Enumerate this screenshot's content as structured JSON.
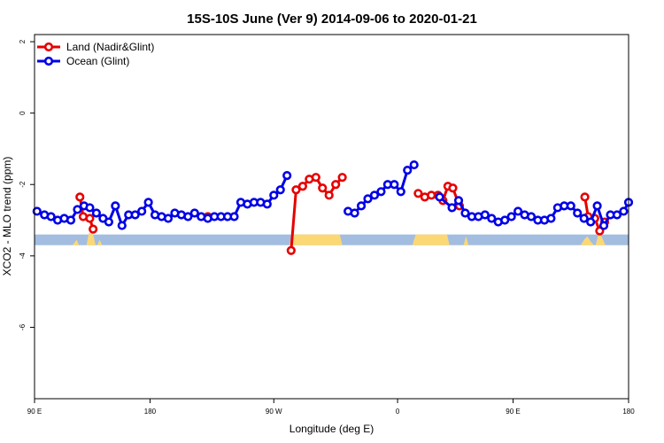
{
  "chart_data": {
    "type": "line",
    "title": "15S-10S June (Ver 9)   2014-09-06 to 2020-01-21",
    "xlabel": "Longitude (deg E)",
    "ylabel": "XCO2 - MLO trend (ppm)",
    "xlim": [
      90,
      450
    ],
    "ylim": [
      -8,
      2.2
    ],
    "x_ticks": [
      {
        "value": 90,
        "label": "90 E"
      },
      {
        "value": 160,
        "label": "180"
      },
      {
        "value": 235,
        "label": "90 W"
      },
      {
        "value": 310,
        "label": "0"
      },
      {
        "value": 380,
        "label": "90 E"
      },
      {
        "value": 450,
        "label": "180"
      }
    ],
    "y_ticks": [
      {
        "value": 2,
        "label": "2"
      },
      {
        "value": 0,
        "label": "0"
      },
      {
        "value": -2,
        "label": "-2"
      },
      {
        "value": -4,
        "label": "-4"
      },
      {
        "value": -6,
        "label": "-6"
      }
    ],
    "legend_position": "top-left",
    "grid": false,
    "colors": {
      "land": "#e60000",
      "ocean": "#0000e6",
      "surface_ocean": "#a3bde0",
      "surface_land": "#fcd874"
    },
    "series": [
      {
        "name": "Land (Nadir&Glint)",
        "color": "#e60000",
        "segments": [
          [
            [
              117.5,
              -2.35
            ],
            [
              119.5,
              -2.9
            ],
            [
              123.5,
              -2.95
            ],
            [
              125.5,
              -3.25
            ]
          ],
          [
            [
              195,
              -2.9
            ]
          ],
          [
            [
              245.5,
              -3.85
            ],
            [
              248.5,
              -2.15
            ],
            [
              252.5,
              -2.05
            ],
            [
              256.5,
              -1.85
            ],
            [
              260.5,
              -1.8
            ],
            [
              264.5,
              -2.1
            ],
            [
              268.5,
              -2.3
            ],
            [
              272.5,
              -2.0
            ],
            [
              276.5,
              -1.8
            ]
          ],
          [
            [
              322.5,
              -2.25
            ],
            [
              326.5,
              -2.35
            ],
            [
              330.5,
              -2.3
            ],
            [
              334.5,
              -2.3
            ],
            [
              337.5,
              -2.45
            ],
            [
              340.5,
              -2.05
            ],
            [
              343.5,
              -2.1
            ],
            [
              347.5,
              -2.6
            ]
          ],
          [
            [
              423.5,
              -2.35
            ],
            [
              425.5,
              -2.9
            ],
            [
              429.5,
              -2.95
            ],
            [
              432.5,
              -3.3
            ],
            [
              435.5,
              -3.05
            ]
          ]
        ]
      },
      {
        "name": "Ocean (Glint)",
        "color": "#0000e6",
        "segments": [
          [
            [
              91.5,
              -2.75
            ],
            [
              96,
              -2.85
            ],
            [
              100,
              -2.9
            ],
            [
              104,
              -3.0
            ],
            [
              108,
              -2.95
            ],
            [
              112,
              -3.0
            ],
            [
              116,
              -2.7
            ],
            [
              120,
              -2.6
            ],
            [
              123.5,
              -2.65
            ],
            [
              127.5,
              -2.8
            ],
            [
              131.5,
              -2.95
            ],
            [
              135,
              -3.05
            ],
            [
              139,
              -2.6
            ],
            [
              143,
              -3.15
            ],
            [
              147,
              -2.85
            ],
            [
              151,
              -2.85
            ],
            [
              155,
              -2.75
            ],
            [
              159,
              -2.5
            ],
            [
              163,
              -2.85
            ],
            [
              167,
              -2.9
            ],
            [
              171,
              -2.95
            ],
            [
              175,
              -2.8
            ],
            [
              179,
              -2.85
            ],
            [
              183,
              -2.9
            ],
            [
              187,
              -2.8
            ],
            [
              191,
              -2.9
            ],
            [
              195,
              -2.95
            ],
            [
              199,
              -2.9
            ],
            [
              203,
              -2.9
            ],
            [
              207,
              -2.9
            ],
            [
              211,
              -2.9
            ],
            [
              215,
              -2.5
            ],
            [
              219,
              -2.55
            ],
            [
              223,
              -2.5
            ],
            [
              227,
              -2.5
            ],
            [
              231,
              -2.55
            ],
            [
              235,
              -2.3
            ],
            [
              239,
              -2.15
            ],
            [
              243,
              -1.75
            ]
          ],
          [
            [
              280,
              -2.75
            ],
            [
              284,
              -2.8
            ],
            [
              288,
              -2.6
            ],
            [
              292,
              -2.4
            ],
            [
              296,
              -2.3
            ],
            [
              300,
              -2.2
            ],
            [
              304,
              -2.0
            ],
            [
              308,
              -2.0
            ],
            [
              312,
              -2.2
            ],
            [
              316,
              -1.6
            ],
            [
              320,
              -1.45
            ]
          ],
          [
            [
              335.5,
              -2.35
            ],
            [
              343,
              -2.65
            ],
            [
              347,
              -2.45
            ],
            [
              351,
              -2.8
            ],
            [
              355,
              -2.9
            ],
            [
              359,
              -2.9
            ],
            [
              363,
              -2.85
            ],
            [
              367,
              -2.95
            ],
            [
              371,
              -3.05
            ],
            [
              375,
              -3.0
            ],
            [
              379,
              -2.9
            ],
            [
              383,
              -2.75
            ],
            [
              387,
              -2.85
            ],
            [
              391,
              -2.9
            ],
            [
              395,
              -3.0
            ],
            [
              399,
              -3.0
            ],
            [
              403,
              -2.95
            ],
            [
              407,
              -2.65
            ],
            [
              411,
              -2.6
            ],
            [
              415,
              -2.6
            ],
            [
              419,
              -2.8
            ],
            [
              423,
              -2.95
            ],
            [
              427,
              -3.05
            ],
            [
              431,
              -2.6
            ],
            [
              435,
              -3.15
            ],
            [
              439,
              -2.85
            ],
            [
              443,
              -2.85
            ],
            [
              447,
              -2.75
            ],
            [
              450,
              -2.5
            ]
          ]
        ]
      }
    ],
    "surface_bar": {
      "y_top": -3.4,
      "y_bottom": -3.7,
      "land_regions": [
        [
          [
            113,
            -3.7
          ],
          [
            115.5,
            -3.55
          ],
          [
            117,
            -3.7
          ]
        ],
        [
          [
            121.5,
            -3.7
          ],
          [
            123,
            -3.35
          ],
          [
            125.5,
            -3.4
          ],
          [
            127,
            -3.7
          ]
        ],
        [
          [
            128,
            -3.7
          ],
          [
            129.5,
            -3.55
          ],
          [
            131,
            -3.7
          ]
        ],
        [
          [
            244.5,
            -3.7
          ],
          [
            246,
            -3.4
          ],
          [
            275,
            -3.4
          ],
          [
            276.5,
            -3.7
          ]
        ],
        [
          [
            319,
            -3.7
          ],
          [
            321,
            -3.4
          ],
          [
            340,
            -3.4
          ],
          [
            341.5,
            -3.7
          ]
        ],
        [
          [
            350,
            -3.7
          ],
          [
            351.5,
            -3.45
          ],
          [
            353,
            -3.7
          ]
        ],
        [
          [
            421,
            -3.7
          ],
          [
            423,
            -3.55
          ],
          [
            425,
            -3.45
          ],
          [
            427,
            -3.6
          ],
          [
            429,
            -3.7
          ]
        ],
        [
          [
            430,
            -3.7
          ],
          [
            432,
            -3.35
          ],
          [
            434,
            -3.5
          ],
          [
            436,
            -3.7
          ]
        ]
      ]
    }
  }
}
